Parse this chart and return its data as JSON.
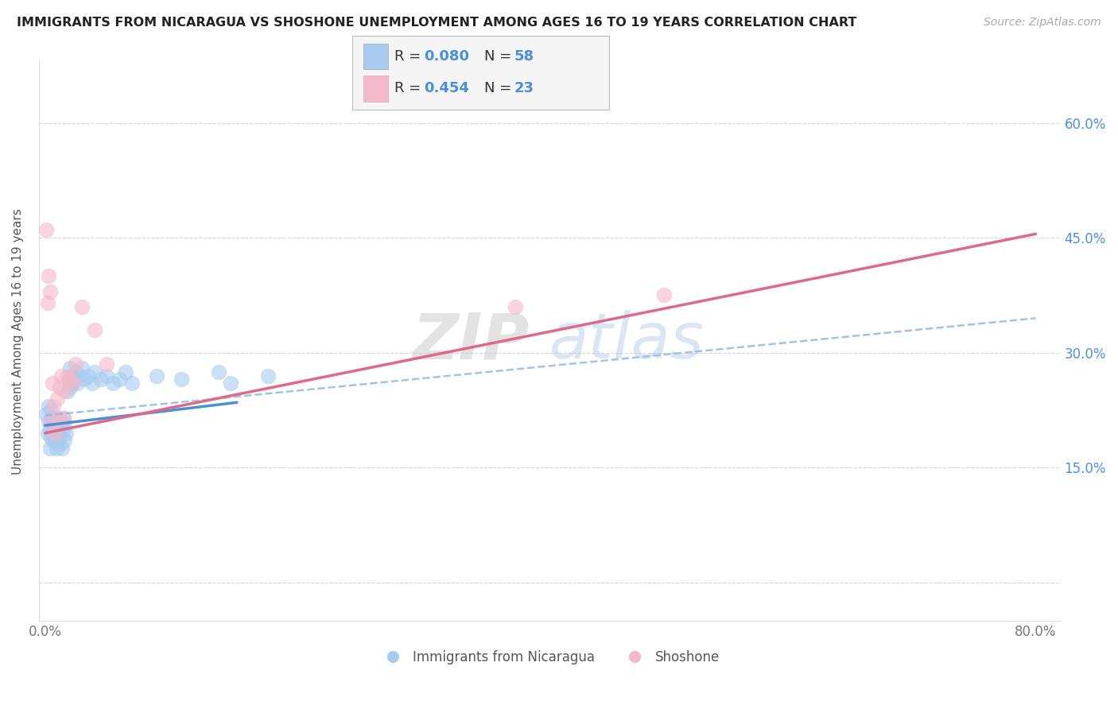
{
  "title": "IMMIGRANTS FROM NICARAGUA VS SHOSHONE UNEMPLOYMENT AMONG AGES 16 TO 19 YEARS CORRELATION CHART",
  "source": "Source: ZipAtlas.com",
  "ylabel": "Unemployment Among Ages 16 to 19 years",
  "xlim": [
    -0.005,
    0.82
  ],
  "ylim": [
    -0.05,
    0.68
  ],
  "yticks": [
    0.0,
    0.15,
    0.3,
    0.45,
    0.6
  ],
  "ytick_labels_left": [
    "",
    "",
    "",
    "",
    ""
  ],
  "ytick_labels_right": [
    "",
    "15.0%",
    "30.0%",
    "45.0%",
    "60.0%"
  ],
  "xticks": [
    0.0,
    0.2,
    0.4,
    0.6,
    0.8
  ],
  "xtick_labels": [
    "0.0%",
    "",
    "",
    "",
    "80.0%"
  ],
  "watermark_zip": "ZIP",
  "watermark_atlas": "atlas",
  "legend_R1": "0.080",
  "legend_N1": "58",
  "legend_R2": "0.454",
  "legend_N2": "23",
  "blue_color": "#A8CCF0",
  "pink_color": "#F5B8CA",
  "blue_line_color": "#4A90D9",
  "pink_line_color": "#E06888",
  "dashed_line_color": "#90BBE0",
  "scatter_blue_x": [
    0.001,
    0.002,
    0.003,
    0.003,
    0.004,
    0.004,
    0.005,
    0.005,
    0.005,
    0.006,
    0.006,
    0.006,
    0.007,
    0.007,
    0.008,
    0.008,
    0.009,
    0.009,
    0.01,
    0.01,
    0.01,
    0.011,
    0.011,
    0.012,
    0.012,
    0.013,
    0.014,
    0.015,
    0.015,
    0.016,
    0.016,
    0.017,
    0.018,
    0.019,
    0.02,
    0.02,
    0.021,
    0.022,
    0.023,
    0.025,
    0.026,
    0.028,
    0.03,
    0.032,
    0.035,
    0.038,
    0.04,
    0.045,
    0.05,
    0.055,
    0.06,
    0.065,
    0.07,
    0.09,
    0.11,
    0.14,
    0.15,
    0.18
  ],
  "scatter_blue_y": [
    0.22,
    0.195,
    0.21,
    0.23,
    0.175,
    0.2,
    0.19,
    0.21,
    0.225,
    0.185,
    0.2,
    0.215,
    0.195,
    0.21,
    0.185,
    0.2,
    0.175,
    0.195,
    0.185,
    0.2,
    0.215,
    0.19,
    0.205,
    0.18,
    0.195,
    0.21,
    0.175,
    0.2,
    0.215,
    0.185,
    0.205,
    0.195,
    0.25,
    0.265,
    0.28,
    0.255,
    0.27,
    0.26,
    0.265,
    0.275,
    0.26,
    0.27,
    0.28,
    0.265,
    0.27,
    0.26,
    0.275,
    0.265,
    0.27,
    0.26,
    0.265,
    0.275,
    0.26,
    0.27,
    0.265,
    0.275,
    0.26,
    0.27
  ],
  "scatter_pink_x": [
    0.001,
    0.002,
    0.003,
    0.004,
    0.005,
    0.006,
    0.007,
    0.008,
    0.01,
    0.011,
    0.012,
    0.013,
    0.015,
    0.016,
    0.018,
    0.02,
    0.022,
    0.025,
    0.03,
    0.04,
    0.05,
    0.38,
    0.5
  ],
  "scatter_pink_y": [
    0.46,
    0.365,
    0.4,
    0.38,
    0.21,
    0.26,
    0.23,
    0.195,
    0.24,
    0.215,
    0.255,
    0.27,
    0.215,
    0.25,
    0.27,
    0.265,
    0.26,
    0.285,
    0.36,
    0.33,
    0.285,
    0.36,
    0.375
  ],
  "blue_trend_x": [
    0.0,
    0.155
  ],
  "blue_trend_y": [
    0.205,
    0.235
  ],
  "pink_trend_x": [
    0.0,
    0.8
  ],
  "pink_trend_y": [
    0.195,
    0.455
  ],
  "dashed_trend_x": [
    0.0,
    0.8
  ],
  "dashed_trend_y": [
    0.218,
    0.345
  ]
}
